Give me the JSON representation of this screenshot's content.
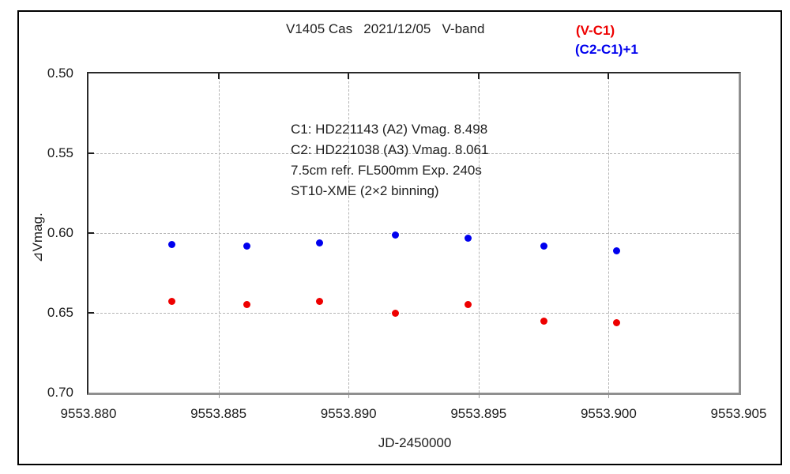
{
  "figure": {
    "background": "#ffffff",
    "frame_border_color": "#000000",
    "grid_color": "#b4b4b4",
    "text_color": "#1c1c1c"
  },
  "chart_data": {
    "type": "scatter",
    "title": "V1405 Cas   2021/12/05   V-band",
    "xlabel": "JD-2450000",
    "ylabel": "⊿Vmag.",
    "x_min": 9553.88,
    "x_max": 9553.905,
    "y_min": 0.5,
    "y_max": 0.7,
    "y_axis_inverted_magnitude": true,
    "grid": "dashed",
    "legend_position": "top-right-outside",
    "x_tick_labels": [
      "9553.880",
      "9553.885",
      "9553.890",
      "9553.895",
      "9553.900",
      "9553.905"
    ],
    "y_tick_labels": [
      "0.50",
      "0.55",
      "0.60",
      "0.65",
      "0.70"
    ],
    "legend": [
      {
        "label": "(V-C1)",
        "color": "#ee0000"
      },
      {
        "label": "(C2-C1)+1",
        "color": "#0000ee"
      }
    ],
    "annotations": [
      "C1: HD221143 (A2) Vmag. 8.498",
      "C2: HD221038 (A3) Vmag. 8.061",
      "7.5cm refr. FL500mm Exp. 240s",
      "ST10-XME (2×2 binning)"
    ],
    "series": [
      {
        "name": "(V-C1)",
        "color": "#ee0000",
        "marker": "circle",
        "x": [
          9553.8832,
          9553.8861,
          9553.8889,
          9553.8918,
          9553.8946,
          9553.8975,
          9553.9003
        ],
        "y": [
          0.643,
          0.645,
          0.643,
          0.65,
          0.645,
          0.655,
          0.656
        ]
      },
      {
        "name": "(C2-C1)+1",
        "color": "#0000ee",
        "marker": "circle",
        "x": [
          9553.8832,
          9553.8861,
          9553.8889,
          9553.8918,
          9553.8946,
          9553.8975,
          9553.9003
        ],
        "y": [
          0.607,
          0.608,
          0.606,
          0.601,
          0.603,
          0.608,
          0.611
        ]
      }
    ]
  }
}
